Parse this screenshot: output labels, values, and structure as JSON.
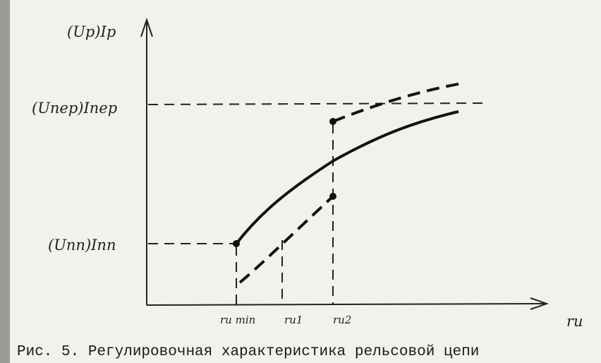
{
  "figure": {
    "y_axis_label": "(Uр)Iр",
    "x_axis_label": "rи",
    "y_levels": [
      "(Uпер)Iпер",
      "(Uпп)Iпп"
    ],
    "x_points": [
      "rи min",
      "rи1",
      "rи2"
    ],
    "caption": "Рис. 5. Регулировочная характеристика рельсовой цепи"
  }
}
